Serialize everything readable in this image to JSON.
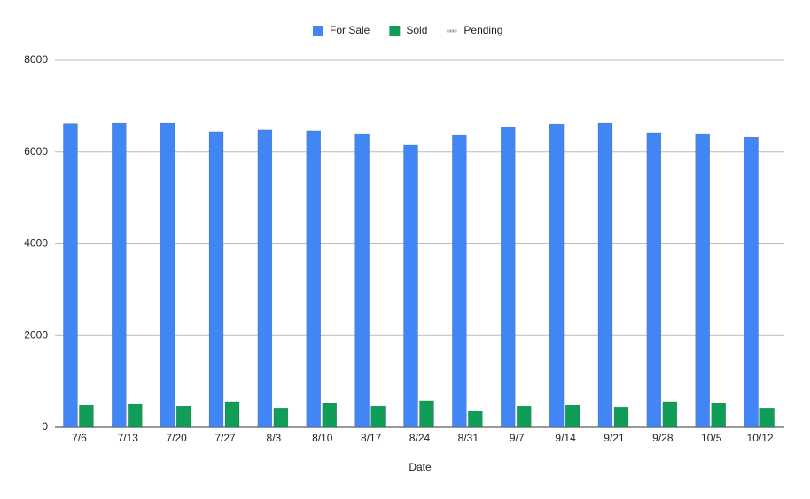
{
  "chart_data": {
    "type": "bar",
    "x_label": "Date",
    "categories": [
      "7/6",
      "7/13",
      "7/20",
      "7/27",
      "8/3",
      "8/10",
      "8/17",
      "8/24",
      "8/31",
      "9/7",
      "9/14",
      "9/21",
      "9/28",
      "10/5",
      "10/12"
    ],
    "series": [
      {
        "name": "For Sale",
        "color": "#4285f4",
        "values": [
          6620,
          6630,
          6630,
          6440,
          6480,
          6460,
          6400,
          6150,
          6360,
          6550,
          6610,
          6630,
          6420,
          6400,
          6320
        ]
      },
      {
        "name": "Sold",
        "color": "#0f9d58",
        "values": [
          480,
          500,
          460,
          560,
          420,
          520,
          460,
          580,
          350,
          460,
          480,
          440,
          560,
          520,
          420
        ]
      },
      {
        "name": "Pending",
        "color": "#999999",
        "legend_style": "line",
        "values": [
          null,
          null,
          null,
          null,
          null,
          null,
          null,
          null,
          null,
          null,
          null,
          null,
          null,
          null,
          null
        ]
      }
    ],
    "ylim": [
      0,
      8000
    ],
    "yticks": [
      0,
      2000,
      4000,
      6000,
      8000
    ],
    "grid": true,
    "legend": "top"
  }
}
